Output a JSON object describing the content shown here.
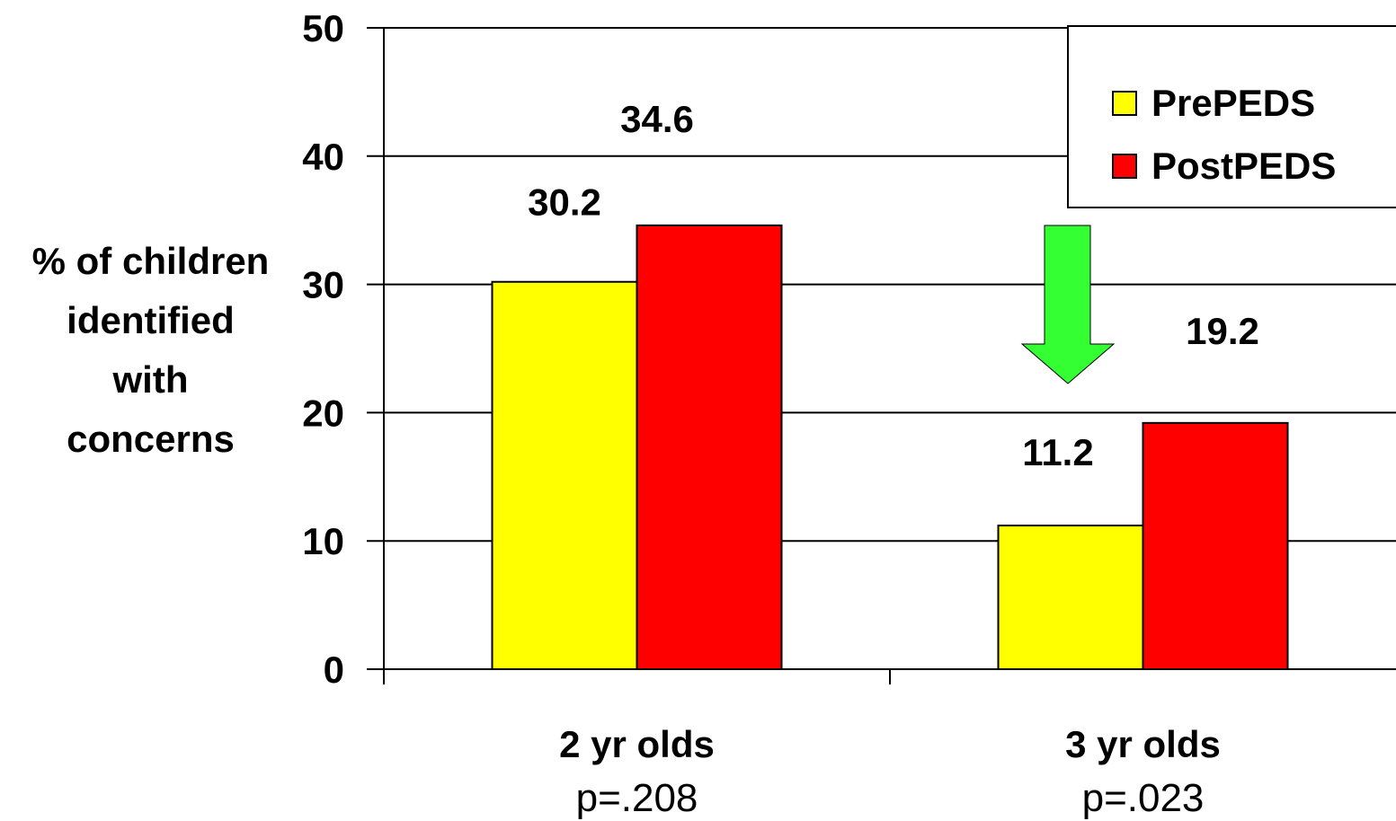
{
  "chart_data": {
    "type": "bar",
    "categories": [
      "2 yr olds",
      "3 yr olds"
    ],
    "category_sublabels": [
      "p=.208",
      "p=.023"
    ],
    "series": [
      {
        "name": "PrePEDS",
        "values": [
          30.2,
          11.2
        ],
        "color": "#ffff00"
      },
      {
        "name": "PostPEDS",
        "values": [
          34.6,
          19.2
        ],
        "color": "#ff0000"
      }
    ],
    "data_labels": [
      "30.2",
      "34.6",
      "11.2",
      "19.2"
    ],
    "ylabel_lines": [
      "% of children",
      "identified",
      "with",
      "concerns"
    ],
    "ylim": [
      0,
      50
    ],
    "yticks": [
      0,
      10,
      20,
      30,
      40,
      50
    ],
    "grid": true,
    "legend_position": "top-right",
    "annotation": {
      "type": "down-arrow",
      "color": "#33ff33",
      "category": "3 yr olds"
    }
  }
}
